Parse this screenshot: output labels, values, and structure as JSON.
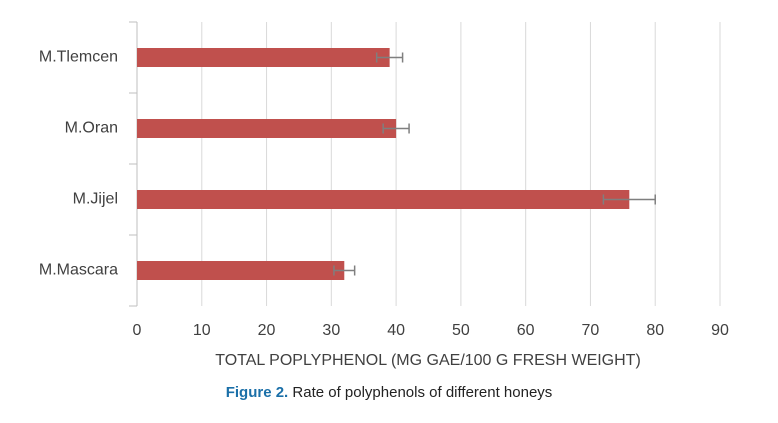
{
  "chart_data": {
    "type": "bar",
    "orientation": "horizontal",
    "categories": [
      "M.Tlemcen",
      "M.Oran",
      "M.Jijel",
      "M.Mascara"
    ],
    "values": [
      39,
      40,
      76,
      32
    ],
    "errors": [
      2,
      2,
      4,
      1.6
    ],
    "color": "#c0504d",
    "xlabel": "TOTAL POPLYPHENOL (MG GAE/100 G FRESH WEIGHT)",
    "xlim": [
      0,
      90
    ],
    "xticks": [
      0,
      10,
      20,
      30,
      40,
      50,
      60,
      70,
      80,
      90
    ],
    "grid": true
  },
  "caption": {
    "label": "Figure 2.",
    "text": "Rate of polyphenols of different honeys"
  }
}
